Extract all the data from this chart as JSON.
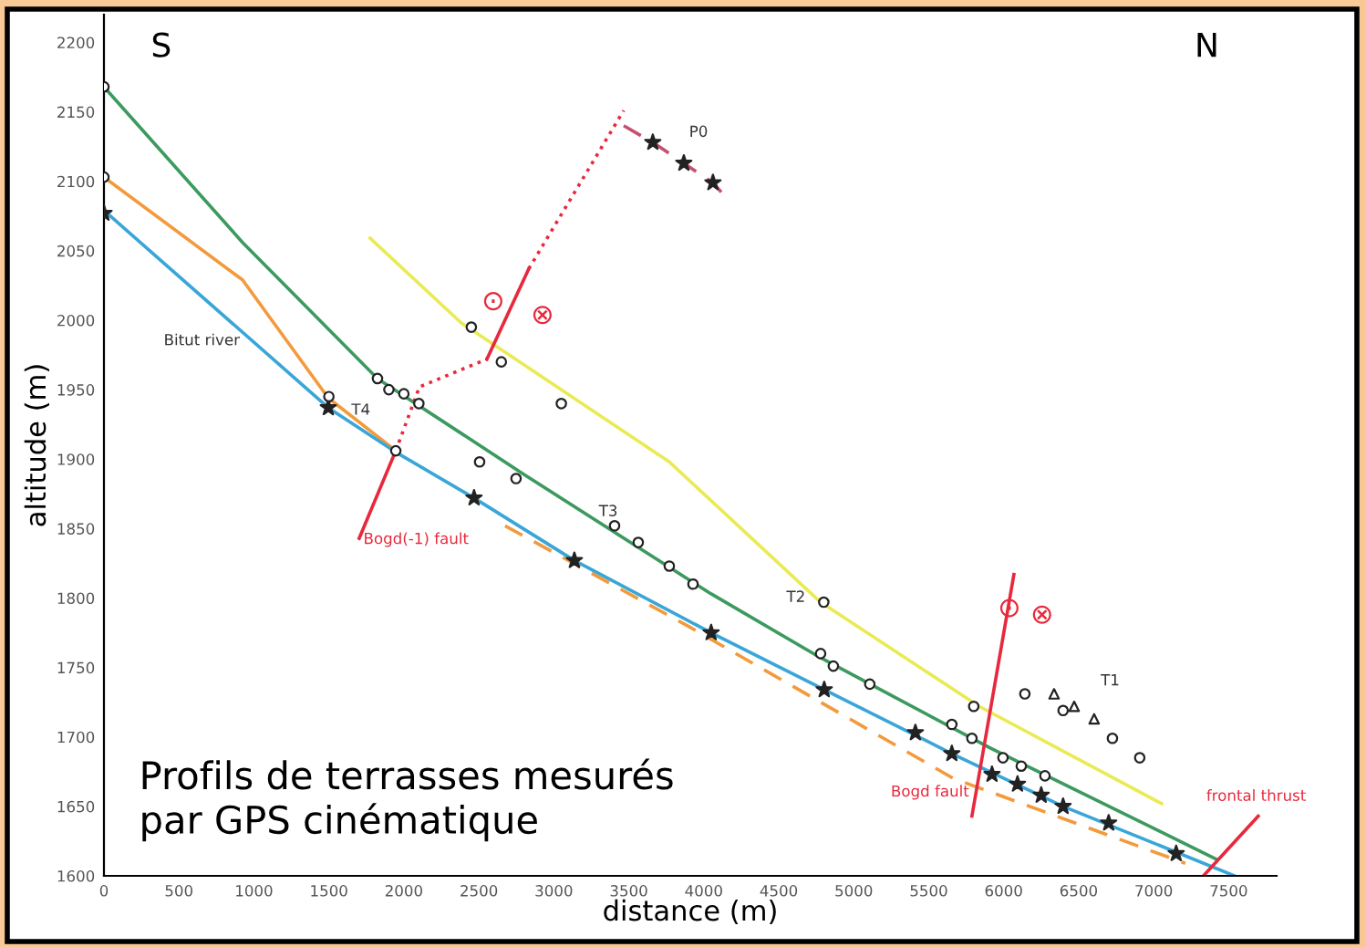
{
  "chart_data": {
    "type": "line",
    "xlabel": "distance (m)",
    "ylabel": "altitude (m)",
    "xlim": [
      0,
      7820
    ],
    "ylim": [
      1600,
      2220
    ],
    "xticks": [
      0,
      500,
      1000,
      1500,
      2000,
      2500,
      3000,
      3500,
      4000,
      4500,
      5000,
      5500,
      6000,
      6500,
      7000,
      7500
    ],
    "yticks": [
      1600,
      1650,
      1700,
      1750,
      1800,
      1850,
      1900,
      1950,
      2000,
      2050,
      2100,
      2150,
      2200
    ],
    "grid": false,
    "legend": false,
    "series": [
      {
        "color": "#3c9a5f",
        "line_style": "solid",
        "x": [
          0,
          924,
          1824,
          2772,
          4049,
          4779,
          5910,
          7418
        ],
        "values": [
          2168,
          2056,
          1958,
          1891,
          1803,
          1757,
          1692,
          1612
        ]
      },
      {
        "color": "#f39a3c",
        "line_style": "solid",
        "x": [
          0,
          924,
          1496,
          1946
        ],
        "values": [
          2103,
          2029,
          1944,
          1906
        ]
      },
      {
        "color": "#f39a3c",
        "line_style": "dashed",
        "x": [
          2675,
          3891,
          5667,
          7211
        ],
        "values": [
          1852,
          1780,
          1670,
          1609
        ]
      },
      {
        "color": "#3aa6d8",
        "line_style": "solid",
        "x": [
          0,
          1496,
          1946,
          2468,
          3137,
          4049,
          4803,
          5654,
          6396,
          7539
        ],
        "values": [
          2079,
          1937,
          1905,
          1872,
          1827,
          1775,
          1734,
          1688,
          1650,
          1600
        ]
      },
      {
        "color": "#eaea55",
        "line_style": "solid",
        "x": [
          1775,
          2383,
          3770,
          4779,
          5837,
          7053
        ],
        "values": [
          2059,
          1998,
          1898,
          1797,
          1722,
          1652
        ]
      },
      {
        "color": "#e8283c",
        "line_style": "solid",
        "x": [
          1702,
          1946
        ],
        "values": [
          1843,
          1906
        ]
      },
      {
        "color": "#e8283c",
        "line_style": "dotted",
        "x": [
          1946,
          2104,
          2554
        ],
        "values": [
          1906,
          1952,
          1972
        ]
      },
      {
        "color": "#e8283c",
        "line_style": "solid",
        "x": [
          2554,
          2833
        ],
        "values": [
          1972,
          2037
        ]
      },
      {
        "color": "#e8283c",
        "line_style": "dotted",
        "x": [
          2833,
          3466
        ],
        "values": [
          2037,
          2151
        ]
      },
      {
        "color": "#e8283c",
        "line_style": "solid",
        "x": [
          5788,
          6068
        ],
        "values": [
          1643,
          1817
        ]
      },
      {
        "color": "#e8283c",
        "line_style": "solid",
        "x": [
          7332,
          7697
        ],
        "values": [
          1600,
          1643
        ]
      },
      {
        "color": "#c8506e",
        "line_style": "dashed",
        "x": [
          3466,
          3660,
          3867,
          4061,
          4150
        ],
        "values": [
          2140,
          2128,
          2113,
          2099,
          2088
        ]
      },
      {
        "type": "scatter",
        "color": "#222222",
        "marker": "star",
        "x": [
          0,
          1496,
          2468,
          3137,
          4049,
          4803,
          5411,
          5654,
          5922,
          6092,
          6250,
          6396,
          6700,
          7150
        ],
        "values": [
          2077,
          1937,
          1872,
          1827,
          1775,
          1734,
          1703,
          1688,
          1673,
          1666,
          1658,
          1650,
          1638,
          1616
        ]
      },
      {
        "type": "scatter",
        "color": "#222222",
        "marker": "star",
        "x": [
          3660,
          3867,
          4061
        ],
        "values": [
          2128,
          2113,
          2099
        ]
      },
      {
        "type": "scatter",
        "color": "#222222",
        "marker": "circle",
        "x": [
          0,
          1500,
          1946,
          1824,
          1900,
          2000,
          2100,
          2505,
          2748,
          3405,
          3563,
          3770,
          3928,
          4779,
          4864,
          5107,
          5654,
          5788,
          5995,
          6117,
          6275
        ],
        "values": [
          2168,
          1945,
          1906,
          1958,
          1950,
          1947,
          1940,
          1898,
          1886,
          1852,
          1840,
          1823,
          1810,
          1760,
          1751,
          1738,
          1709,
          1699,
          1685,
          1679,
          1672
        ]
      },
      {
        "type": "scatter",
        "color": "#222222",
        "marker": "circle",
        "x": [
          0,
          2450,
          2650,
          3050,
          4800,
          5800,
          6141,
          6396,
          6725,
          6907
        ],
        "values": [
          2103,
          1995,
          1970,
          1940,
          1797,
          1722,
          1731,
          1719,
          1699,
          1685
        ]
      },
      {
        "type": "scatter",
        "color": "#222222",
        "marker": "triangle",
        "x": [
          6336,
          6470,
          6603
        ],
        "values": [
          1731,
          1722,
          1713
        ]
      }
    ],
    "annotations": [
      "S",
      "N",
      "Profils de terrasses mesurés\npar GPS cinématique",
      "Bitut river",
      {
        "text": "T4",
        "x": 1650,
        "y": 1935
      },
      {
        "text": "T3",
        "x": 3300,
        "y": 1862
      },
      "T2",
      "T1",
      "P0",
      {
        "text": "Bogd(-1) fault",
        "x": 1730,
        "y": 1842
      },
      "Bogd fault",
      "frontal thrust",
      "⊙",
      "⊗",
      {
        "text": "⊙",
        "x": 5960,
        "y": 1792
      },
      "⊗"
    ]
  }
}
